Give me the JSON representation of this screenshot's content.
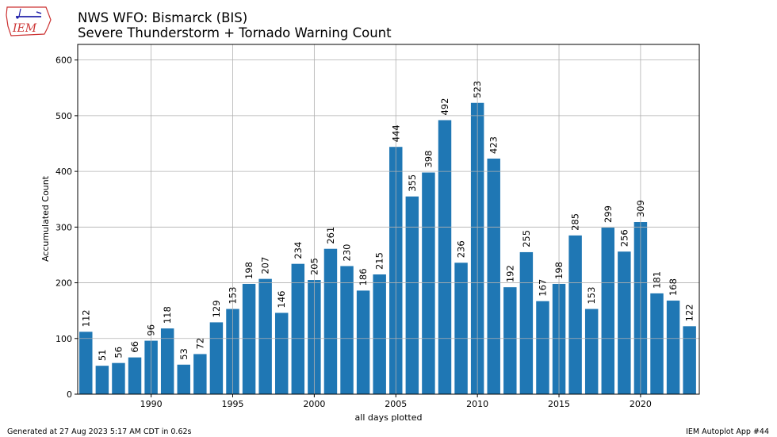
{
  "logo": {
    "text": "IEM"
  },
  "title_line1": "NWS WFO: Bismarck (BIS)",
  "title_line2": "Severe Thunderstorm + Tornado Warning Count",
  "footer_left": "Generated at 27 Aug 2023 5:17 AM CDT in 0.62s",
  "footer_right": "IEM Autoplot App #44",
  "chart_data": {
    "type": "bar",
    "title": "NWS WFO: Bismarck (BIS) Severe Thunderstorm + Tornado Warning Count",
    "xlabel": "all days plotted",
    "ylabel": "Accumulated Count",
    "x": [
      1986,
      1987,
      1988,
      1989,
      1990,
      1991,
      1992,
      1993,
      1994,
      1995,
      1996,
      1997,
      1998,
      1999,
      2000,
      2001,
      2002,
      2003,
      2004,
      2005,
      2006,
      2007,
      2008,
      2009,
      2010,
      2011,
      2012,
      2013,
      2014,
      2015,
      2016,
      2017,
      2018,
      2019,
      2020,
      2021,
      2022,
      2023
    ],
    "values": [
      112,
      51,
      56,
      66,
      96,
      118,
      53,
      72,
      129,
      153,
      198,
      207,
      146,
      234,
      205,
      261,
      230,
      186,
      215,
      444,
      355,
      398,
      492,
      236,
      523,
      423,
      192,
      255,
      167,
      198,
      285,
      153,
      299,
      256,
      309,
      181,
      168,
      122
    ],
    "xticks": [
      1990,
      1995,
      2000,
      2005,
      2010,
      2015,
      2020
    ],
    "yticks": [
      0,
      100,
      200,
      300,
      400,
      500,
      600
    ],
    "xlim": [
      1985.5,
      2023.6
    ],
    "ylim": [
      0,
      628
    ],
    "grid": true,
    "bar_color": "#1f77b4",
    "data_labels": true
  }
}
